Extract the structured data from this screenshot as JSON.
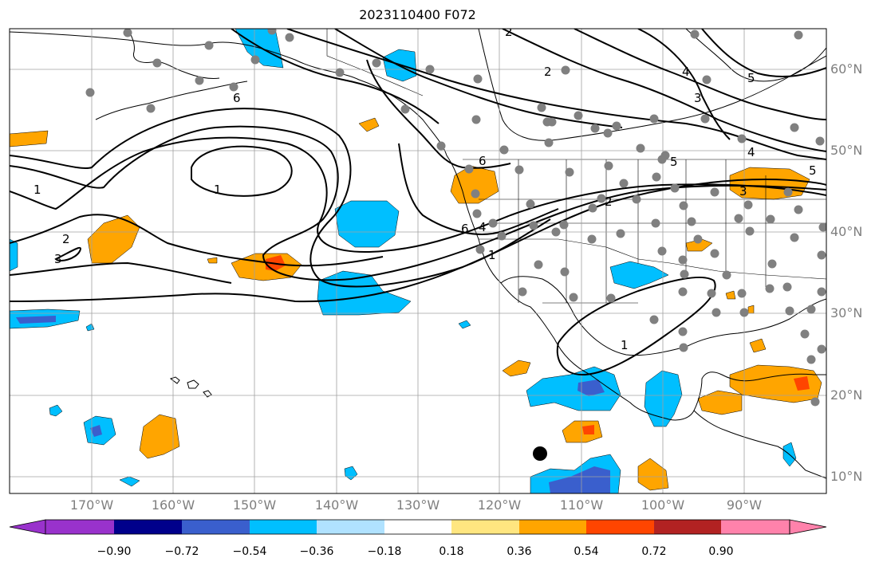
{
  "title": "2023110400 F072",
  "map": {
    "lat_labels": [
      "60°N",
      "50°N",
      "40°N",
      "30°N",
      "20°N",
      "10°N"
    ],
    "lon_labels": [
      "170°W",
      "160°W",
      "150°W",
      "140°W",
      "130°W",
      "120°W",
      "110°W",
      "100°W",
      "90°W"
    ],
    "contour_labels": [
      "1",
      "2",
      "3",
      "4",
      "5",
      "6"
    ],
    "station_marker_color": "#808080",
    "colorbar": {
      "ticks": [
        "−0.90",
        "−0.72",
        "−0.54",
        "−0.36",
        "−0.18",
        "0.18",
        "0.36",
        "0.54",
        "0.72",
        "0.90"
      ],
      "colors": [
        "#9932cc",
        "#00008b",
        "#3a5fcd",
        "#00bfff",
        "#b0e2ff",
        "#ffffff",
        "#ffe680",
        "#ffa500",
        "#ff4500",
        "#b22222",
        "#ff82ab"
      ]
    }
  }
}
